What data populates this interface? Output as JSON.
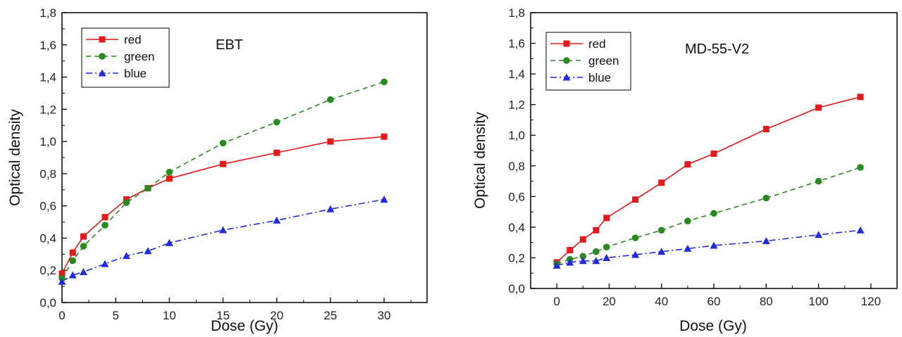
{
  "chart_data": [
    {
      "type": "line",
      "annotation": "EBT",
      "xlabel": "Dose (Gy)",
      "ylabel": "Optical density",
      "xlim": [
        0,
        34
      ],
      "ylim": [
        0,
        1.8
      ],
      "xticks": [
        0,
        5,
        10,
        15,
        20,
        25,
        30
      ],
      "xtick_labels": [
        "0",
        "5",
        "10",
        "15",
        "20",
        "25",
        "30"
      ],
      "yticks": [
        0,
        0.2,
        0.4,
        0.6,
        0.8,
        1.0,
        1.2,
        1.4,
        1.6,
        1.8
      ],
      "ytick_labels": [
        "0,0",
        "0,2",
        "0,4",
        "0,6",
        "0,8",
        "1,0",
        "1,2",
        "1,4",
        "1,6",
        "1,8"
      ],
      "legend_position": "top-left",
      "series": [
        {
          "name": "red",
          "color": "#e3191c",
          "marker": "square",
          "dash": "solid",
          "x": [
            0,
            1,
            2,
            4,
            6,
            8,
            10,
            15,
            20,
            25,
            30
          ],
          "y": [
            0.18,
            0.31,
            0.41,
            0.53,
            0.64,
            0.71,
            0.77,
            0.86,
            0.93,
            1.0,
            1.03
          ]
        },
        {
          "name": "green",
          "color": "#2a8a22",
          "marker": "circle",
          "dash": "dash",
          "x": [
            0,
            1,
            2,
            4,
            6,
            8,
            10,
            15,
            20,
            25,
            30
          ],
          "y": [
            0.15,
            0.26,
            0.35,
            0.48,
            0.62,
            0.71,
            0.81,
            0.99,
            1.12,
            1.26,
            1.37
          ]
        },
        {
          "name": "blue",
          "color": "#1f2bdc",
          "marker": "triangle",
          "dash": "dashdot",
          "x": [
            0,
            1,
            2,
            4,
            6,
            8,
            10,
            15,
            20,
            25,
            30
          ],
          "y": [
            0.13,
            0.17,
            0.19,
            0.24,
            0.29,
            0.32,
            0.37,
            0.45,
            0.51,
            0.58,
            0.64
          ]
        }
      ]
    },
    {
      "type": "line",
      "annotation": "MD-55-V2",
      "xlabel": "Dose (Gy)",
      "ylabel": "Optical density",
      "xlim": [
        -10,
        130
      ],
      "ylim": [
        0,
        1.8
      ],
      "xticks": [
        0,
        20,
        40,
        60,
        80,
        100,
        120
      ],
      "xtick_labels": [
        "0",
        "20",
        "40",
        "60",
        "80",
        "100",
        "120"
      ],
      "yticks": [
        0,
        0.2,
        0.4,
        0.6,
        0.8,
        1.0,
        1.2,
        1.4,
        1.6,
        1.8
      ],
      "ytick_labels": [
        "0,0",
        "0,2",
        "0,4",
        "0,6",
        "0,8",
        "1,0",
        "1,2",
        "1,4",
        "1,6",
        "1,8"
      ],
      "legend_position": "top-left",
      "series": [
        {
          "name": "red",
          "color": "#e3191c",
          "marker": "square",
          "dash": "solid",
          "x": [
            0,
            5,
            10,
            15,
            19,
            30,
            40,
            50,
            60,
            80,
            100,
            116
          ],
          "y": [
            0.17,
            0.25,
            0.32,
            0.38,
            0.46,
            0.58,
            0.69,
            0.81,
            0.88,
            1.04,
            1.18,
            1.25
          ]
        },
        {
          "name": "green",
          "color": "#2a8a22",
          "marker": "circle",
          "dash": "dash",
          "x": [
            0,
            5,
            10,
            15,
            19,
            30,
            40,
            50,
            60,
            80,
            100,
            116
          ],
          "y": [
            0.16,
            0.19,
            0.21,
            0.24,
            0.27,
            0.33,
            0.38,
            0.44,
            0.49,
            0.59,
            0.7,
            0.79
          ]
        },
        {
          "name": "blue",
          "color": "#1f2bdc",
          "marker": "triangle",
          "dash": "dashdot",
          "x": [
            0,
            5,
            10,
            15,
            19,
            30,
            40,
            50,
            60,
            80,
            100,
            116
          ],
          "y": [
            0.15,
            0.17,
            0.18,
            0.18,
            0.2,
            0.22,
            0.24,
            0.26,
            0.28,
            0.31,
            0.35,
            0.38
          ]
        }
      ]
    }
  ]
}
